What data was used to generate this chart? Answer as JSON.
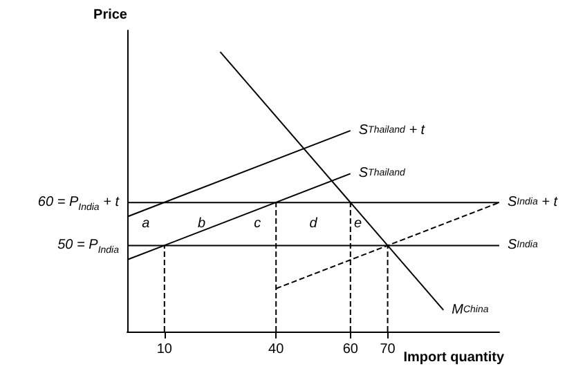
{
  "chart_data": {
    "type": "line",
    "xlabel": "Import quantity",
    "ylabel": "Price",
    "xlim": [
      0,
      100
    ],
    "ylim": [
      30,
      100
    ],
    "xticks": [
      10,
      40,
      60,
      70
    ],
    "yticks": [
      {
        "value": 50,
        "label": "50 = P$_{India}$"
      },
      {
        "value": 60,
        "label": "60 = P$_{India}$ + t"
      }
    ],
    "grid": false,
    "marker": "none",
    "series": [
      {
        "name": "S$_{Thailand}$ + t",
        "color": "#000000",
        "line_style": "solid",
        "x": [
          0,
          60
        ],
        "values": [
          56.7,
          76.7
        ]
      },
      {
        "name": "S$_{Thailand}$",
        "color": "#000000",
        "line_style": "solid",
        "x": [
          0,
          60
        ],
        "values": [
          46.7,
          66.7
        ]
      },
      {
        "name": "S$_{India}$ + t",
        "color": "#000000",
        "line_style": "solid",
        "x": [
          0,
          100
        ],
        "values": [
          60,
          60
        ]
      },
      {
        "name": "S$_{India}$",
        "color": "#000000",
        "line_style": "solid",
        "x": [
          0,
          100
        ],
        "values": [
          50,
          50
        ]
      },
      {
        "name": "M$_{China}$",
        "color": "#000000",
        "line_style": "solid",
        "x": [
          25,
          85
        ],
        "values": [
          95,
          35
        ]
      },
      {
        "color": "#000000",
        "line_style": "dashed",
        "x": [
          40,
          100
        ],
        "values": [
          40,
          60
        ]
      },
      {
        "color": "#000000",
        "line_style": "dashed",
        "x": [
          10,
          10
        ],
        "values": [
          30,
          50
        ]
      },
      {
        "color": "#000000",
        "line_style": "dashed",
        "x": [
          40,
          40
        ],
        "values": [
          30,
          60
        ]
      },
      {
        "color": "#000000",
        "line_style": "dashed",
        "x": [
          60,
          60
        ],
        "values": [
          30,
          60
        ]
      },
      {
        "color": "#000000",
        "line_style": "dashed",
        "x": [
          70,
          70
        ],
        "values": [
          30,
          50
        ]
      }
    ],
    "annotations": [
      "a",
      "b",
      "c",
      "d",
      "e"
    ]
  }
}
